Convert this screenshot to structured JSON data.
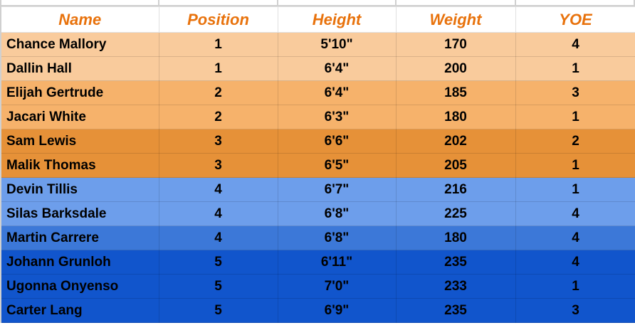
{
  "headers": [
    "Name",
    "Position",
    "Height",
    "Weight",
    "YOE"
  ],
  "colors": {
    "header_text": "#e8720c",
    "orange_light": "#f9cb9c",
    "orange_mid": "#f6b26b",
    "orange_dark": "#e69138",
    "blue_light": "#6d9eeb",
    "blue_mid": "#3c78d8",
    "blue_dark": "#1155cc"
  },
  "rows": [
    {
      "name": "Chance Mallory",
      "position": "1",
      "height": "5'10\"",
      "weight": "170",
      "yoe": "4",
      "color": "#f9cb9c"
    },
    {
      "name": "Dallin Hall",
      "position": "1",
      "height": "6'4\"",
      "weight": "200",
      "yoe": "1",
      "color": "#f9cb9c"
    },
    {
      "name": "Elijah Gertrude",
      "position": "2",
      "height": "6'4\"",
      "weight": "185",
      "yoe": "3",
      "color": "#f6b26b"
    },
    {
      "name": "Jacari White",
      "position": "2",
      "height": "6'3\"",
      "weight": "180",
      "yoe": "1",
      "color": "#f6b26b"
    },
    {
      "name": "Sam Lewis",
      "position": "3",
      "height": "6'6\"",
      "weight": "202",
      "yoe": "2",
      "color": "#e69138"
    },
    {
      "name": "Malik Thomas",
      "position": "3",
      "height": "6'5\"",
      "weight": "205",
      "yoe": "1",
      "color": "#e69138"
    },
    {
      "name": "Devin Tillis",
      "position": "4",
      "height": "6'7\"",
      "weight": "216",
      "yoe": "1",
      "color": "#6d9eeb"
    },
    {
      "name": "Silas Barksdale",
      "position": "4",
      "height": "6'8\"",
      "weight": "225",
      "yoe": "4",
      "color": "#6d9eeb"
    },
    {
      "name": "Martin Carrere",
      "position": "4",
      "height": "6'8\"",
      "weight": "180",
      "yoe": "4",
      "color": "#3c78d8"
    },
    {
      "name": "Johann Grunloh",
      "position": "5",
      "height": "6'11\"",
      "weight": "235",
      "yoe": "4",
      "color": "#1155cc"
    },
    {
      "name": "Ugonna Onyenso",
      "position": "5",
      "height": "7'0\"",
      "weight": "233",
      "yoe": "1",
      "color": "#1155cc"
    },
    {
      "name": "Carter Lang",
      "position": "5",
      "height": "6'9\"",
      "weight": "235",
      "yoe": "3",
      "color": "#1155cc"
    }
  ]
}
